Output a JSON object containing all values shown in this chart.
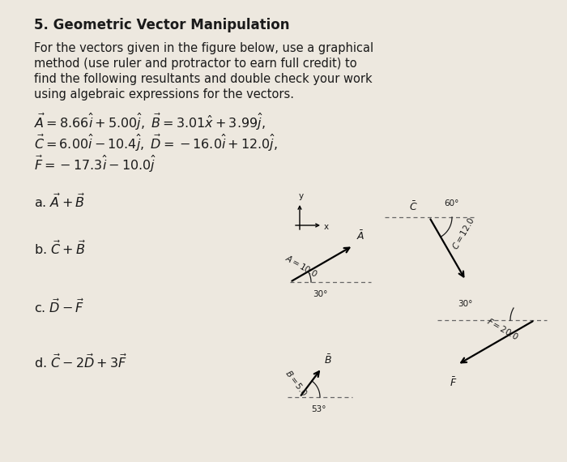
{
  "title": "5. Geometric Vector Manipulation",
  "body_text_lines": [
    "For the vectors given in the figure below, use a graphical",
    "method (use ruler and protractor to earn full credit) to",
    "find the following resultants and double check your work",
    "using algebraic expressions for the vectors."
  ],
  "eq_line1": "$\\vec{A} = 8.66\\hat{i} + 5.00\\hat{j},\\ \\vec{B} = 3.01\\hat{x} + 3.99\\hat{j},$",
  "eq_line2": "$\\vec{C} = 6.00\\hat{i} - 10.4\\hat{j},\\ \\vec{D} = -16.0\\hat{i} + 12.0\\hat{j},$",
  "eq_line3": "$\\vec{F} = -17.3\\hat{i} - 10.0\\hat{j}$",
  "part_a": "a. $\\vec{A} + \\vec{B}$",
  "part_b": "b. $\\vec{C} + \\vec{B}$",
  "part_c": "c. $\\vec{D} - \\vec{F}$",
  "part_d": "d. $\\vec{C} - 2\\vec{D} + 3\\vec{F}$",
  "bg_color": "#ede8df",
  "text_color": "#1a1a1a",
  "dashed_color": "#666666",
  "arrow_color": "#111111",
  "title_fontsize": 12,
  "body_fontsize": 10.5,
  "eq_fontsize": 11.5,
  "part_fontsize": 11.5,
  "diag_fontsize": 7.5
}
